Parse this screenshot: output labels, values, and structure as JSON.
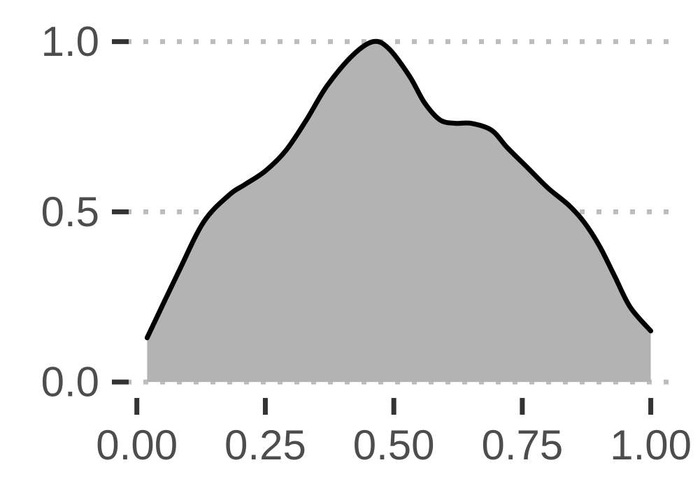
{
  "chart_data": {
    "type": "area",
    "title": "",
    "xlabel": "",
    "ylabel": "",
    "xlim": [
      -0.02,
      1.04
    ],
    "ylim": [
      -0.01,
      1.03
    ],
    "x_ticks": [
      0.0,
      0.25,
      0.5,
      0.75,
      1.0
    ],
    "x_tick_labels": [
      "0.00",
      "0.25",
      "0.50",
      "0.75",
      "1.00"
    ],
    "y_ticks": [
      0.0,
      0.5,
      1.0
    ],
    "y_tick_labels": [
      "0.0",
      "0.5",
      "1.0"
    ],
    "grid": "horizontal-dotted",
    "legend": "none",
    "series": [
      {
        "x": [
          0.02,
          0.08,
          0.13,
          0.18,
          0.21,
          0.25,
          0.29,
          0.33,
          0.37,
          0.42,
          0.46,
          0.49,
          0.53,
          0.56,
          0.59,
          0.62,
          0.65,
          0.69,
          0.72,
          0.76,
          0.8,
          0.84,
          0.87,
          0.9,
          0.93,
          0.96,
          1.0
        ],
        "y": [
          0.13,
          0.32,
          0.47,
          0.55,
          0.58,
          0.62,
          0.68,
          0.77,
          0.87,
          0.96,
          1.0,
          0.98,
          0.9,
          0.82,
          0.77,
          0.76,
          0.76,
          0.74,
          0.69,
          0.63,
          0.57,
          0.52,
          0.47,
          0.4,
          0.31,
          0.22,
          0.15
        ]
      }
    ],
    "fill_color": "#b3b3b3",
    "line_color": "#000000",
    "grid_color": "#bdbdbd",
    "axis_color": "#333333",
    "tick_label_color": "#4d4d4d"
  }
}
